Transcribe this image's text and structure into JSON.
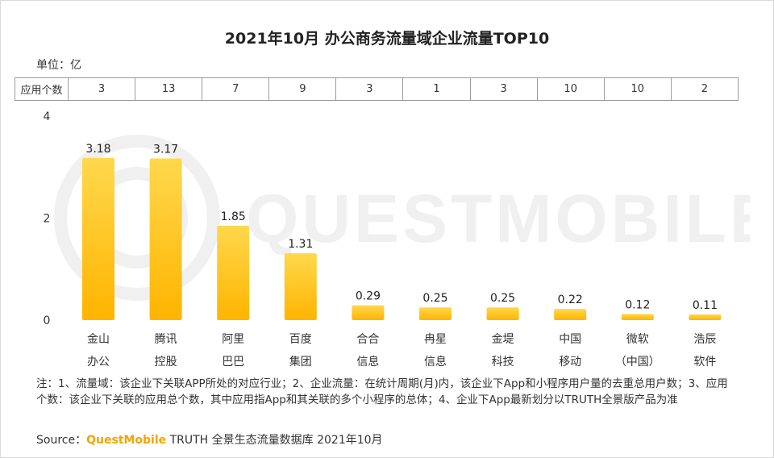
{
  "title": "2021年10月 办公商务流量域企业流量TOP10",
  "unit": "单位：亿",
  "count_row": {
    "header": "应用个数",
    "values": [
      "3",
      "13",
      "7",
      "9",
      "3",
      "1",
      "3",
      "10",
      "10",
      "2"
    ]
  },
  "watermark": "QUESTMOBILE",
  "chart_data": {
    "type": "bar",
    "title": "2021年10月 办公商务流量域企业流量TOP10",
    "ylabel": "单位：亿",
    "ylim": [
      0,
      4
    ],
    "yticks": [
      "0",
      "2",
      "4"
    ],
    "categories": [
      [
        "金山",
        "办公"
      ],
      [
        "腾讯",
        "控股"
      ],
      [
        "阿里",
        "巴巴"
      ],
      [
        "百度",
        "集团"
      ],
      [
        "合合",
        "信息"
      ],
      [
        "冉星",
        "信息"
      ],
      [
        "金堤",
        "科技"
      ],
      [
        "中国",
        "移动"
      ],
      [
        "微软",
        "（中国）"
      ],
      [
        "浩辰",
        "软件"
      ]
    ],
    "values": [
      3.18,
      3.17,
      1.85,
      1.31,
      0.29,
      0.25,
      0.25,
      0.22,
      0.12,
      0.11
    ],
    "value_labels": [
      "3.18",
      "3.17",
      "1.85",
      "1.31",
      "0.29",
      "0.25",
      "0.25",
      "0.22",
      "0.12",
      "0.11"
    ],
    "bar_color_top": "#ffd84d",
    "bar_color_bottom": "#ffb400"
  },
  "notes": "注：1、流量域：该企业下关联APP所处的对应行业；2、企业流量：在统计周期(月)内，该企业下App和小程序用户量的去重总用户数；3、应用个数：该企业下关联的应用总个数，其中应用指App和其关联的多个小程序的总体；4、企业下App最新划分以TRUTH全景版产品为准",
  "source": {
    "prefix": "Source：",
    "brand": "QuestMobile",
    "suffix": " TRUTH 全景生态流量数据库 2021年10月"
  }
}
